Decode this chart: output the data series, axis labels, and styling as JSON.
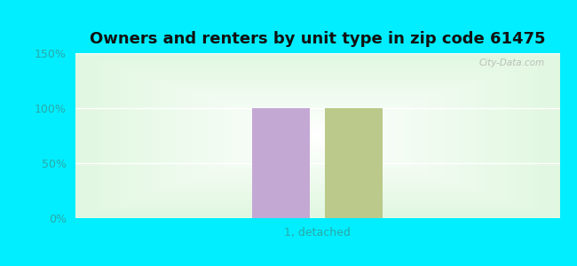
{
  "title": "Owners and renters by unit type in zip code 61475",
  "categories": [
    "1, detached"
  ],
  "owner_values": [
    100
  ],
  "renter_values": [
    100
  ],
  "owner_color": "#c4a8d4",
  "renter_color": "#bbc98a",
  "ylim": [
    0,
    150
  ],
  "yticks": [
    0,
    50,
    100,
    150
  ],
  "ytick_labels": [
    "0%",
    "50%",
    "100%",
    "150%"
  ],
  "outer_bg": "#00eeff",
  "watermark": "City-Data.com",
  "bar_width": 0.12,
  "title_fontsize": 13,
  "tick_color": "#2aa8a8",
  "grid_color": "#ccddcc"
}
